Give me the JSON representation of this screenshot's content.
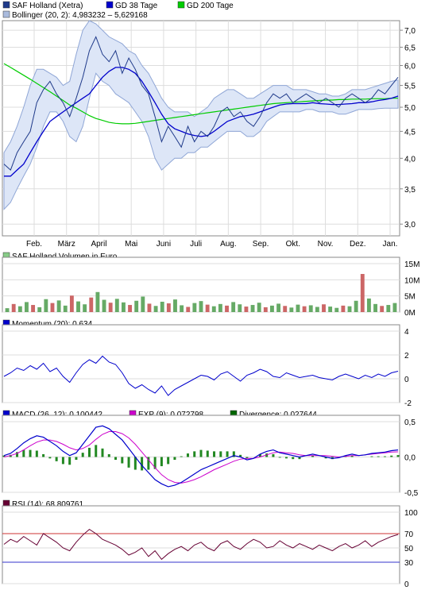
{
  "chart_data": [
    {
      "type": "line",
      "panel": "price",
      "legend": [
        {
          "label": "SAF Holland (Xetra)",
          "color": "#1f3a8a"
        },
        {
          "label": "GD 38 Tage",
          "color": "#0000cc"
        },
        {
          "label": "GD 200 Tage",
          "color": "#00cc00"
        },
        {
          "label": "Bollinger (20, 2): 4,983232 – 5,629168",
          "color": "#aabbdd"
        }
      ],
      "x_ticks": [
        "Feb.",
        "März",
        "April",
        "Mai",
        "Juni",
        "Juli",
        "Aug.",
        "Sep.",
        "Okt.",
        "Nov.",
        "Dez.",
        "Jan."
      ],
      "y_ticks": [
        "7,0",
        "6,5",
        "6,0",
        "5,5",
        "5,0",
        "4,5",
        "4,0",
        "3,5",
        "3,0"
      ],
      "y_scale": "log",
      "ylim": [
        2.85,
        7.3
      ],
      "grid": true,
      "series": [
        {
          "name": "SAF Holland (Xetra)",
          "values": [
            3.9,
            3.8,
            4.1,
            4.3,
            4.5,
            5.1,
            5.4,
            5.6,
            5.3,
            5.1,
            4.8,
            5.2,
            5.7,
            6.4,
            6.8,
            6.3,
            6.1,
            6.4,
            5.8,
            6.2,
            5.9,
            5.5,
            5.3,
            4.8,
            4.3,
            4.6,
            4.4,
            4.2,
            4.6,
            4.3,
            4.5,
            4.4,
            4.6,
            4.9,
            5.0,
            4.8,
            4.9,
            4.7,
            4.6,
            4.8,
            5.1,
            5.3,
            5.2,
            5.3,
            5.1,
            5.2,
            5.3,
            5.2,
            5.1,
            5.2,
            5.1,
            5.0,
            5.2,
            5.3,
            5.2,
            5.1,
            5.2,
            5.4,
            5.3,
            5.5,
            5.7
          ]
        },
        {
          "name": "GD 38 Tage",
          "values": [
            3.7,
            3.7,
            3.8,
            3.9,
            4.1,
            4.3,
            4.5,
            4.7,
            4.8,
            4.9,
            5.0,
            5.1,
            5.2,
            5.3,
            5.5,
            5.7,
            5.85,
            5.95,
            5.95,
            5.9,
            5.8,
            5.6,
            5.35,
            5.1,
            4.85,
            4.65,
            4.55,
            4.5,
            4.45,
            4.42,
            4.4,
            4.42,
            4.5,
            4.6,
            4.7,
            4.75,
            4.8,
            4.82,
            4.85,
            4.9,
            4.95,
            5.0,
            5.05,
            5.07,
            5.08,
            5.08,
            5.08,
            5.1,
            5.08,
            5.07,
            5.06,
            5.06,
            5.07,
            5.08,
            5.1,
            5.1,
            5.12,
            5.15,
            5.17,
            5.2,
            5.25
          ]
        },
        {
          "name": "GD 200 Tage",
          "values": [
            6.05,
            5.95,
            5.85,
            5.75,
            5.65,
            5.55,
            5.45,
            5.35,
            5.25,
            5.15,
            5.05,
            4.98,
            4.9,
            4.82,
            4.76,
            4.72,
            4.68,
            4.66,
            4.65,
            4.65,
            4.66,
            4.68,
            4.7,
            4.72,
            4.74,
            4.76,
            4.78,
            4.8,
            4.82,
            4.84,
            4.86,
            4.88,
            4.9,
            4.92,
            4.94,
            4.96,
            4.98,
            5.0,
            5.02,
            5.04,
            5.06,
            5.08,
            5.09,
            5.1,
            5.11,
            5.12,
            5.13,
            5.14,
            5.15,
            5.16,
            5.16,
            5.17,
            5.17,
            5.18,
            5.18,
            5.18,
            5.19,
            5.19,
            5.19,
            5.2,
            5.2
          ]
        }
      ],
      "bollinger_upper": [
        4.1,
        4.3,
        4.6,
        5.0,
        5.5,
        5.9,
        5.9,
        5.8,
        5.7,
        5.5,
        5.6,
        6.3,
        7.0,
        7.3,
        7.2,
        7.0,
        6.8,
        6.7,
        6.6,
        6.4,
        6.3,
        6.0,
        5.8,
        5.5,
        5.2,
        5.0,
        4.9,
        4.9,
        4.9,
        4.8,
        4.9,
        5.0,
        5.2,
        5.3,
        5.4,
        5.4,
        5.3,
        5.2,
        5.2,
        5.3,
        5.4,
        5.5,
        5.5,
        5.5,
        5.4,
        5.4,
        5.4,
        5.35,
        5.3,
        5.3,
        5.25,
        5.25,
        5.3,
        5.4,
        5.4,
        5.4,
        5.45,
        5.5,
        5.55,
        5.6,
        5.63
      ],
      "bollinger_lower": [
        3.2,
        3.3,
        3.5,
        3.7,
        3.9,
        4.2,
        4.6,
        4.9,
        4.9,
        4.7,
        4.4,
        4.3,
        4.6,
        5.2,
        5.8,
        5.6,
        5.5,
        5.3,
        5.2,
        5.1,
        4.9,
        4.7,
        4.4,
        4.0,
        3.8,
        3.9,
        4.0,
        4.0,
        4.1,
        4.1,
        4.2,
        4.2,
        4.3,
        4.4,
        4.5,
        4.5,
        4.5,
        4.4,
        4.4,
        4.5,
        4.7,
        4.8,
        4.9,
        4.9,
        4.9,
        4.9,
        4.95,
        4.95,
        4.9,
        4.9,
        4.9,
        4.85,
        4.85,
        4.9,
        4.95,
        4.95,
        4.95,
        4.97,
        4.98,
        4.98,
        4.98
      ]
    },
    {
      "type": "bar",
      "panel": "volume",
      "legend": [
        {
          "label": "SAF Holland Volumen in Euro",
          "color": "#88cc88"
        }
      ],
      "y_ticks": [
        "15M",
        "10M",
        "5M",
        "0M"
      ],
      "ylim": [
        0,
        15
      ],
      "values": [
        1.2,
        2.5,
        1.8,
        3.1,
        2.2,
        1.5,
        4.0,
        2.8,
        3.6,
        2.0,
        5.1,
        3.3,
        2.4,
        4.5,
        6.2,
        3.8,
        2.9,
        4.1,
        3.0,
        2.2,
        3.5,
        4.8,
        2.6,
        1.9,
        3.2,
        2.7,
        3.9,
        2.1,
        1.6,
        2.8,
        3.4,
        2.3,
        1.8,
        2.5,
        2.0,
        3.1,
        2.4,
        1.7,
        2.2,
        2.9,
        1.5,
        2.0,
        2.6,
        1.9,
        1.4,
        2.3,
        1.8,
        2.1,
        1.6,
        2.4,
        1.7,
        1.3,
        2.0,
        1.8,
        3.5,
        11.8,
        4.2,
        2.5,
        1.9,
        2.2,
        2.8
      ],
      "up_color": "#66aa66",
      "down_color": "#cc6666"
    },
    {
      "type": "line",
      "panel": "momentum",
      "legend": [
        {
          "label": "Momentum (20): 0,634",
          "color": "#0000cc"
        }
      ],
      "y_ticks": [
        "4",
        "2",
        "0",
        "-2"
      ],
      "ylim": [
        -2,
        4
      ],
      "series": [
        {
          "name": "Momentum (20): 0,634",
          "values": [
            0.2,
            0.5,
            0.9,
            0.7,
            1.1,
            0.8,
            1.3,
            0.6,
            0.9,
            0.2,
            -0.3,
            0.5,
            1.2,
            1.6,
            1.3,
            1.9,
            1.4,
            1.2,
            0.5,
            -0.4,
            -0.8,
            -0.5,
            -0.9,
            -1.2,
            -0.6,
            -1.4,
            -0.9,
            -0.6,
            -0.3,
            0.0,
            0.3,
            0.2,
            -0.1,
            0.4,
            0.6,
            0.2,
            -0.2,
            0.3,
            0.5,
            0.8,
            0.6,
            0.2,
            0.1,
            0.5,
            0.3,
            0.1,
            0.2,
            0.3,
            0.1,
            0.0,
            -0.1,
            0.2,
            0.4,
            0.2,
            0.0,
            0.3,
            0.1,
            0.4,
            0.2,
            0.5,
            0.634
          ]
        }
      ]
    },
    {
      "type": "line",
      "panel": "macd",
      "legend": [
        {
          "label": "MACD (26, 12): 0,100442",
          "color": "#0000cc"
        },
        {
          "label": "EXP (9): 0,072798",
          "color": "#cc00cc"
        },
        {
          "label": "Divergence: 0,027644",
          "color": "#006600"
        }
      ],
      "y_ticks": [
        "0,5",
        "0,0",
        "-0,5"
      ],
      "ylim": [
        -0.5,
        0.5
      ],
      "series": [
        {
          "name": "MACD (26, 12): 0,100442",
          "values": [
            0.02,
            0.05,
            0.12,
            0.2,
            0.26,
            0.3,
            0.28,
            0.22,
            0.16,
            0.08,
            0.02,
            0.06,
            0.18,
            0.3,
            0.42,
            0.44,
            0.4,
            0.32,
            0.24,
            0.12,
            0.0,
            -0.12,
            -0.22,
            -0.32,
            -0.38,
            -0.42,
            -0.4,
            -0.36,
            -0.3,
            -0.24,
            -0.18,
            -0.14,
            -0.1,
            -0.06,
            -0.02,
            0.02,
            0.0,
            -0.04,
            -0.02,
            0.04,
            0.08,
            0.1,
            0.06,
            0.04,
            0.02,
            0.0,
            0.02,
            0.04,
            0.02,
            0.0,
            -0.02,
            -0.01,
            0.02,
            0.04,
            0.02,
            0.03,
            0.05,
            0.06,
            0.07,
            0.09,
            0.1
          ]
        },
        {
          "name": "EXP (9): 0,072798",
          "values": [
            0.0,
            0.02,
            0.05,
            0.1,
            0.16,
            0.21,
            0.24,
            0.24,
            0.22,
            0.18,
            0.13,
            0.1,
            0.12,
            0.17,
            0.25,
            0.32,
            0.36,
            0.36,
            0.33,
            0.27,
            0.18,
            0.07,
            -0.04,
            -0.15,
            -0.25,
            -0.32,
            -0.36,
            -0.37,
            -0.35,
            -0.32,
            -0.28,
            -0.23,
            -0.18,
            -0.14,
            -0.1,
            -0.06,
            -0.03,
            -0.02,
            -0.02,
            0.0,
            0.03,
            0.06,
            0.07,
            0.06,
            0.05,
            0.03,
            0.02,
            0.02,
            0.02,
            0.02,
            0.01,
            0.0,
            0.01,
            0.02,
            0.02,
            0.03,
            0.04,
            0.05,
            0.06,
            0.07,
            0.073
          ]
        }
      ]
    },
    {
      "type": "line",
      "panel": "rsi",
      "legend": [
        {
          "label": "RSI (14): 68,809761",
          "color": "#660033"
        }
      ],
      "y_ticks": [
        "100",
        "70",
        "50",
        "30",
        "0"
      ],
      "ylim": [
        0,
        100
      ],
      "levels": [
        {
          "value": 70,
          "color": "#cc3333"
        },
        {
          "value": 30,
          "color": "#3333cc"
        }
      ],
      "series": [
        {
          "name": "RSI (14): 68,809761",
          "values": [
            55,
            62,
            58,
            66,
            60,
            54,
            70,
            64,
            58,
            50,
            46,
            58,
            68,
            76,
            70,
            62,
            58,
            54,
            48,
            40,
            44,
            50,
            38,
            46,
            34,
            42,
            48,
            52,
            46,
            54,
            58,
            50,
            46,
            56,
            60,
            52,
            48,
            56,
            62,
            58,
            50,
            52,
            60,
            54,
            50,
            56,
            52,
            48,
            54,
            50,
            46,
            52,
            56,
            50,
            54,
            60,
            52,
            58,
            62,
            66,
            68.8
          ]
        }
      ]
    }
  ]
}
